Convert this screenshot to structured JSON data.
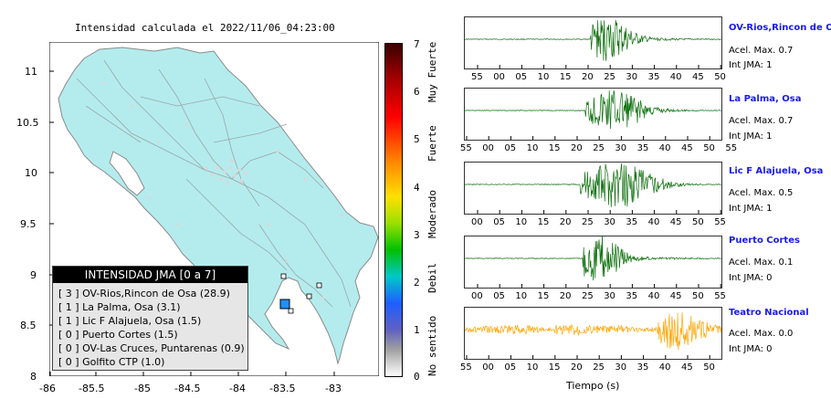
{
  "map": {
    "title": "Intensidad calculada el 2022/11/06_04:23:00",
    "y_ticks": [
      "11",
      "10.5",
      "10",
      "9.5",
      "9",
      "8.5",
      "8"
    ],
    "x_ticks": [
      "-86",
      "-85.5",
      "-85",
      "-84.5",
      "-84",
      "-83.5",
      "-83"
    ],
    "land_color": "#b4ecee",
    "legend": {
      "title": "INTENSIDAD JMA [0 a 7]",
      "items": [
        "[ 3 ]  OV-Rios,Rincon de Osa (28.9)",
        "[ 1 ]  La Palma, Osa (3.1)",
        "[ 1 ]  Lic F Alajuela, Osa (1.5)",
        "[ 0 ]  Puerto Cortes (1.5)",
        "[ 0 ]  OV-Las Cruces, Puntarenas (0.9)",
        "[ 0 ]  Golfito CTP (1.0)"
      ]
    },
    "epicenter_color": "#1e90ff"
  },
  "colorbar": {
    "ticks": [
      "7",
      "6",
      "5",
      "4",
      "3",
      "2",
      "1",
      "0"
    ],
    "categories": [
      "Muy Fuerte",
      "Fuerte",
      "Moderado",
      "Debil",
      "No sentido"
    ]
  },
  "stations": [
    {
      "name": "OV-Rios,Rincon de Osa",
      "accel": "Acel. Max. 0.7",
      "jma": "Int JMA: 1",
      "ticks": [
        "55",
        "00",
        "05",
        "10",
        "15",
        "20",
        "25",
        "30",
        "35",
        "40",
        "45",
        "50"
      ],
      "color": "#0a6e0a"
    },
    {
      "name": "La Palma, Osa",
      "accel": "Acel. Max. 0.7",
      "jma": "Int JMA: 1",
      "ticks": [
        "55",
        "00",
        "05",
        "10",
        "15",
        "20",
        "25",
        "30",
        "35",
        "40",
        "45",
        "50",
        "55"
      ],
      "color": "#0a6e0a"
    },
    {
      "name": "Lic F Alajuela, Osa",
      "accel": "Acel. Max. 0.5",
      "jma": "Int JMA: 1",
      "ticks": [
        "00",
        "05",
        "10",
        "15",
        "20",
        "25",
        "30",
        "35",
        "40",
        "45",
        "50",
        "55"
      ],
      "color": "#0a6e0a"
    },
    {
      "name": "Puerto Cortes",
      "accel": "Acel. Max. 0.1",
      "jma": "Int JMA: 0",
      "ticks": [
        "00",
        "05",
        "10",
        "15",
        "20",
        "25",
        "30",
        "35",
        "40",
        "45",
        "50",
        "55"
      ],
      "color": "#0a6e0a"
    },
    {
      "name": "Teatro Nacional",
      "accel": "Acel. Max. 0.0",
      "jma": "Int JMA: 0",
      "ticks": [
        "55",
        "00",
        "05",
        "10",
        "15",
        "20",
        "25",
        "30",
        "35",
        "40",
        "45",
        "50"
      ],
      "color": "#ffa500"
    }
  ],
  "xlabel": "Tiempo (s)",
  "chart_data": [
    {
      "type": "other",
      "title": "Intensidad calculada el 2022/11/06_04:23:00",
      "xlim": [
        -86,
        -82.6
      ],
      "ylim": [
        8,
        11.3
      ],
      "x_ticks": [
        -86,
        -85.5,
        -85,
        -84.5,
        -84,
        -83.5,
        -83
      ],
      "y_ticks": [
        8,
        8.5,
        9,
        9.5,
        10,
        10.5,
        11
      ],
      "legend": [
        "INTENSIDAD JMA [0 a 7]"
      ]
    },
    {
      "type": "line",
      "xlabel": "Tiempo (s)",
      "series_names": [
        "OV-Rios,Rincon de Osa",
        "La Palma, Osa",
        "Lic F Alajuela, Osa",
        "Puerto Cortes",
        "Teatro Nacional"
      ],
      "acel_max": [
        0.7,
        0.7,
        0.5,
        0.1,
        0.0
      ],
      "int_jma": [
        1,
        1,
        1,
        0,
        0
      ]
    }
  ]
}
